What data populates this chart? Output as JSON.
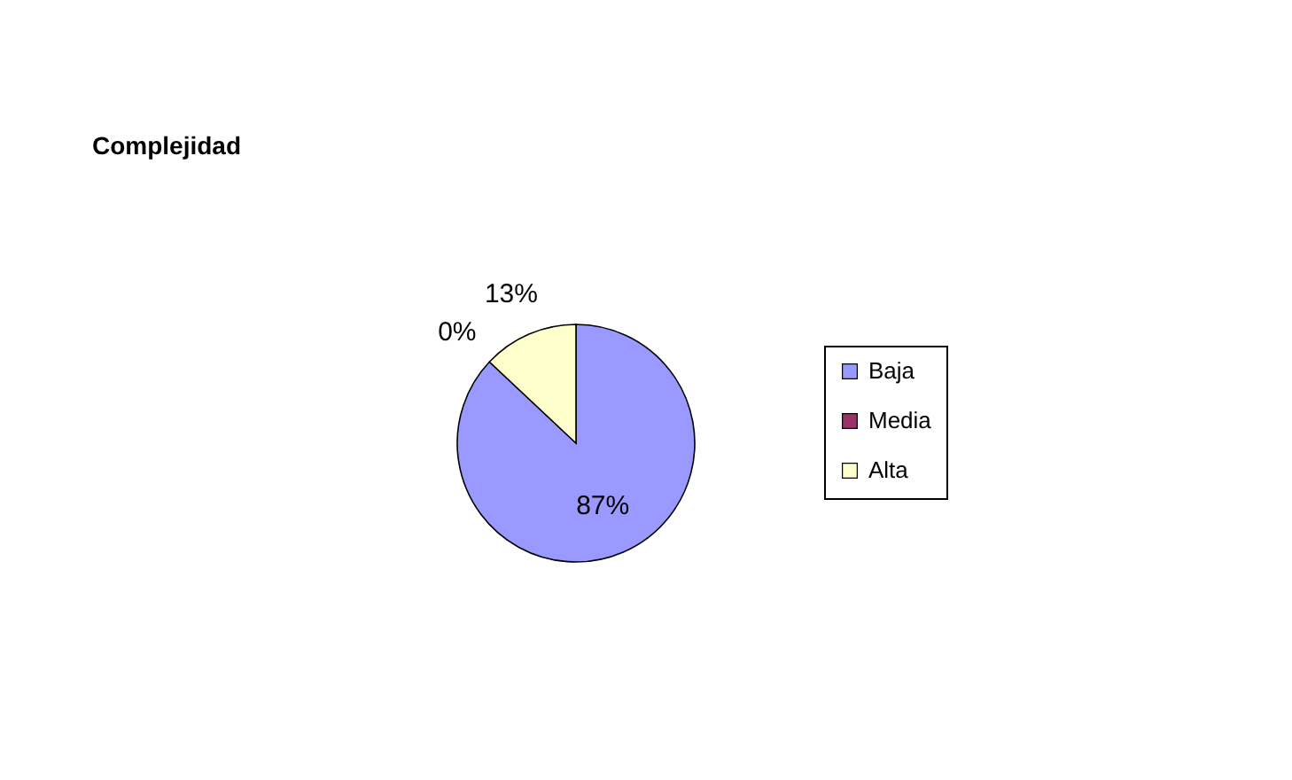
{
  "chart_data": {
    "type": "pie",
    "title": "Complejidad",
    "categories": [
      "Baja",
      "Media",
      "Alta"
    ],
    "values": [
      87,
      0,
      13
    ],
    "colors": [
      "#9999ff",
      "#993366",
      "#ffffcc"
    ],
    "value_labels": [
      "87%",
      "0%",
      "13%"
    ],
    "legend": "right"
  }
}
